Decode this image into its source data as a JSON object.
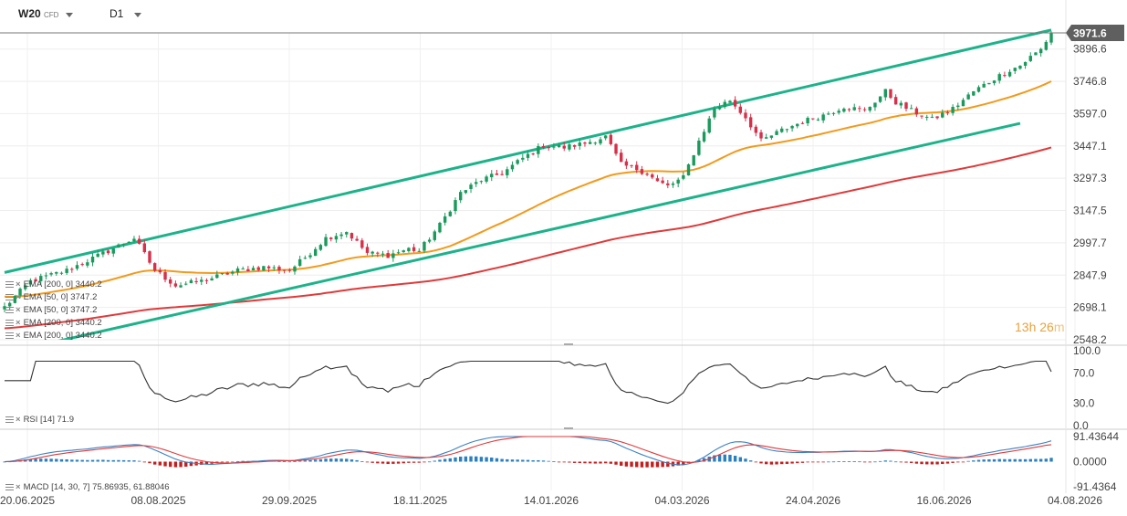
{
  "header": {
    "symbol": "W20",
    "instrument_type": "CFD",
    "timeframe": "D1"
  },
  "colors": {
    "channel": "#1db38a",
    "ema50": "#f29a1c",
    "ema200": "#e03a3a",
    "bull": "#1a9a5c",
    "bear": "#d6304a",
    "rsi": "#333333",
    "macd_line": "#3b82c4",
    "signal_line": "#e03a3a",
    "hist_pos": "#2a7fc0",
    "hist_neg": "#c41e1e"
  },
  "price_panel": {
    "current_price_label": "3971.6",
    "timer_main": "13h 26",
    "timer_unit": "m"
  },
  "legends": [
    "EMA [200, 0] 3440.2",
    "EMA [50, 0] 3747.2",
    "EMA [50, 0] 3747.2",
    "EMA [200, 0] 3440.2",
    "EMA [200, 0] 3440.2"
  ],
  "rsi_legend": "RSI [14] 71.9",
  "macd_legend": "MACD [14, 30, 7] 75.86935, 61.88046",
  "chart_data": [
    {
      "type": "candlestick",
      "title": "",
      "y_ticks": [
        "3896.6",
        "3746.8",
        "3597.0",
        "3447.1",
        "3297.3",
        "3147.5",
        "2997.7",
        "2847.9",
        "2698.1",
        "2548.2"
      ],
      "ylim": [
        2548.2,
        3971.6
      ],
      "x_ticks": [
        "20.06.2025",
        "08.08.2025",
        "29.09.2025",
        "18.11.2025",
        "14.01.2026",
        "04.03.2026",
        "24.04.2026",
        "16.06.2026",
        "04.08.2026"
      ],
      "last_price": 3971.6,
      "close_anchors": [
        [
          0,
          2700
        ],
        [
          5,
          2820
        ],
        [
          12,
          2870
        ],
        [
          20,
          2960
        ],
        [
          25,
          3020
        ],
        [
          29,
          2870
        ],
        [
          33,
          2800
        ],
        [
          38,
          2820
        ],
        [
          45,
          2870
        ],
        [
          50,
          2885
        ],
        [
          55,
          2870
        ],
        [
          58,
          2930
        ],
        [
          62,
          3020
        ],
        [
          66,
          3050
        ],
        [
          70,
          2950
        ],
        [
          74,
          2940
        ],
        [
          78,
          2970
        ],
        [
          80,
          2960
        ],
        [
          84,
          3080
        ],
        [
          88,
          3230
        ],
        [
          92,
          3290
        ],
        [
          96,
          3320
        ],
        [
          100,
          3390
        ],
        [
          104,
          3450
        ],
        [
          108,
          3440
        ],
        [
          112,
          3460
        ],
        [
          116,
          3490
        ],
        [
          119,
          3360
        ],
        [
          122,
          3340
        ],
        [
          124,
          3320
        ],
        [
          126,
          3280
        ],
        [
          128,
          3260
        ],
        [
          131,
          3300
        ],
        [
          134,
          3470
        ],
        [
          137,
          3620
        ],
        [
          140,
          3660
        ],
        [
          143,
          3580
        ],
        [
          146,
          3470
        ],
        [
          150,
          3520
        ],
        [
          154,
          3560
        ],
        [
          158,
          3590
        ],
        [
          162,
          3630
        ],
        [
          166,
          3610
        ],
        [
          170,
          3700
        ],
        [
          172,
          3650
        ],
        [
          175,
          3610
        ],
        [
          179,
          3570
        ],
        [
          183,
          3620
        ],
        [
          187,
          3700
        ],
        [
          191,
          3760
        ],
        [
          194,
          3800
        ],
        [
          196,
          3820
        ],
        [
          198,
          3860
        ],
        [
          200,
          3895
        ],
        [
          202,
          3972
        ]
      ],
      "series": [
        {
          "name": "EMA [50, 0]",
          "last": 3747.2
        },
        {
          "name": "EMA [200, 0]",
          "last": 3440.2
        }
      ],
      "channel_upper": [
        [
          0,
          2860
        ],
        [
          202,
          3985
        ]
      ],
      "channel_lower": [
        [
          10,
          2540
        ],
        [
          196,
          3552
        ]
      ]
    },
    {
      "type": "line",
      "title": "RSI [14]",
      "y_ticks": [
        "100.0",
        "70.0",
        "30.0",
        "0.0"
      ],
      "ylim": [
        0,
        100
      ],
      "last": 71.9
    },
    {
      "type": "bar",
      "title": "MACD [14, 30, 7]",
      "y_ticks": [
        "91.43644",
        "0.0000",
        "-91.4364"
      ],
      "ylim": [
        -91.4364,
        91.43644
      ],
      "macd_last": 75.86935,
      "signal_last": 61.88046
    }
  ]
}
